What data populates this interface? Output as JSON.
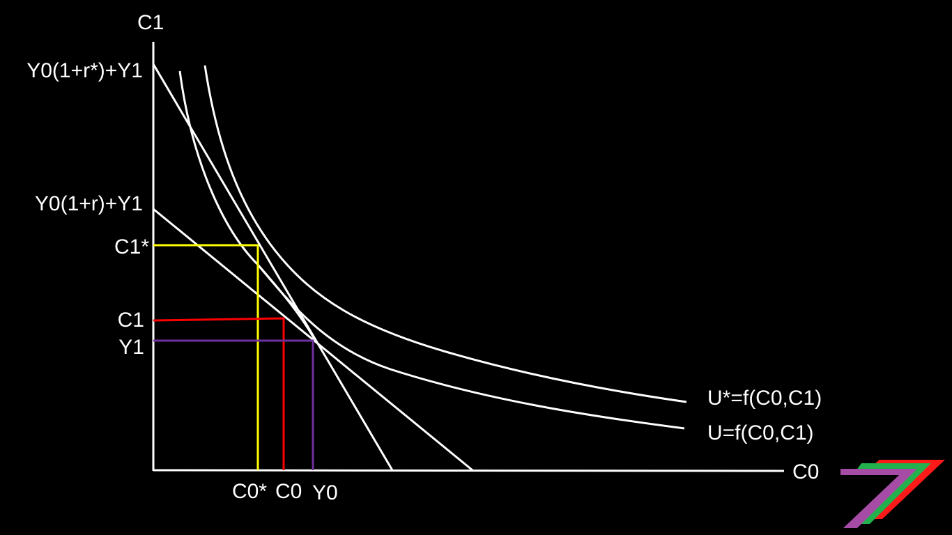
{
  "diagram": {
    "type": "intertemporal-consumption-choice",
    "background": "#000000",
    "line_color": "#ffffff",
    "labels": {
      "y_axis": "C1",
      "x_axis": "C0",
      "intercept_high": "Y0(1+r*)+Y1",
      "intercept_low": "Y0(1+r)+Y1",
      "c1_star": "C1*",
      "c1": "C1",
      "y1": "Y1",
      "c0_star": "C0*",
      "c0": "C0",
      "y0": "Y0",
      "utility_star": "U*=f(C0,C1)",
      "utility": "U=f(C0,C1)"
    },
    "guide_colors": {
      "optimum_star": "#ffff00",
      "optimum": "#ff0000",
      "endowment": "#7030a0"
    },
    "logo_colors": [
      "#ff1a1a",
      "#22b14c",
      "#a64ca6"
    ]
  }
}
